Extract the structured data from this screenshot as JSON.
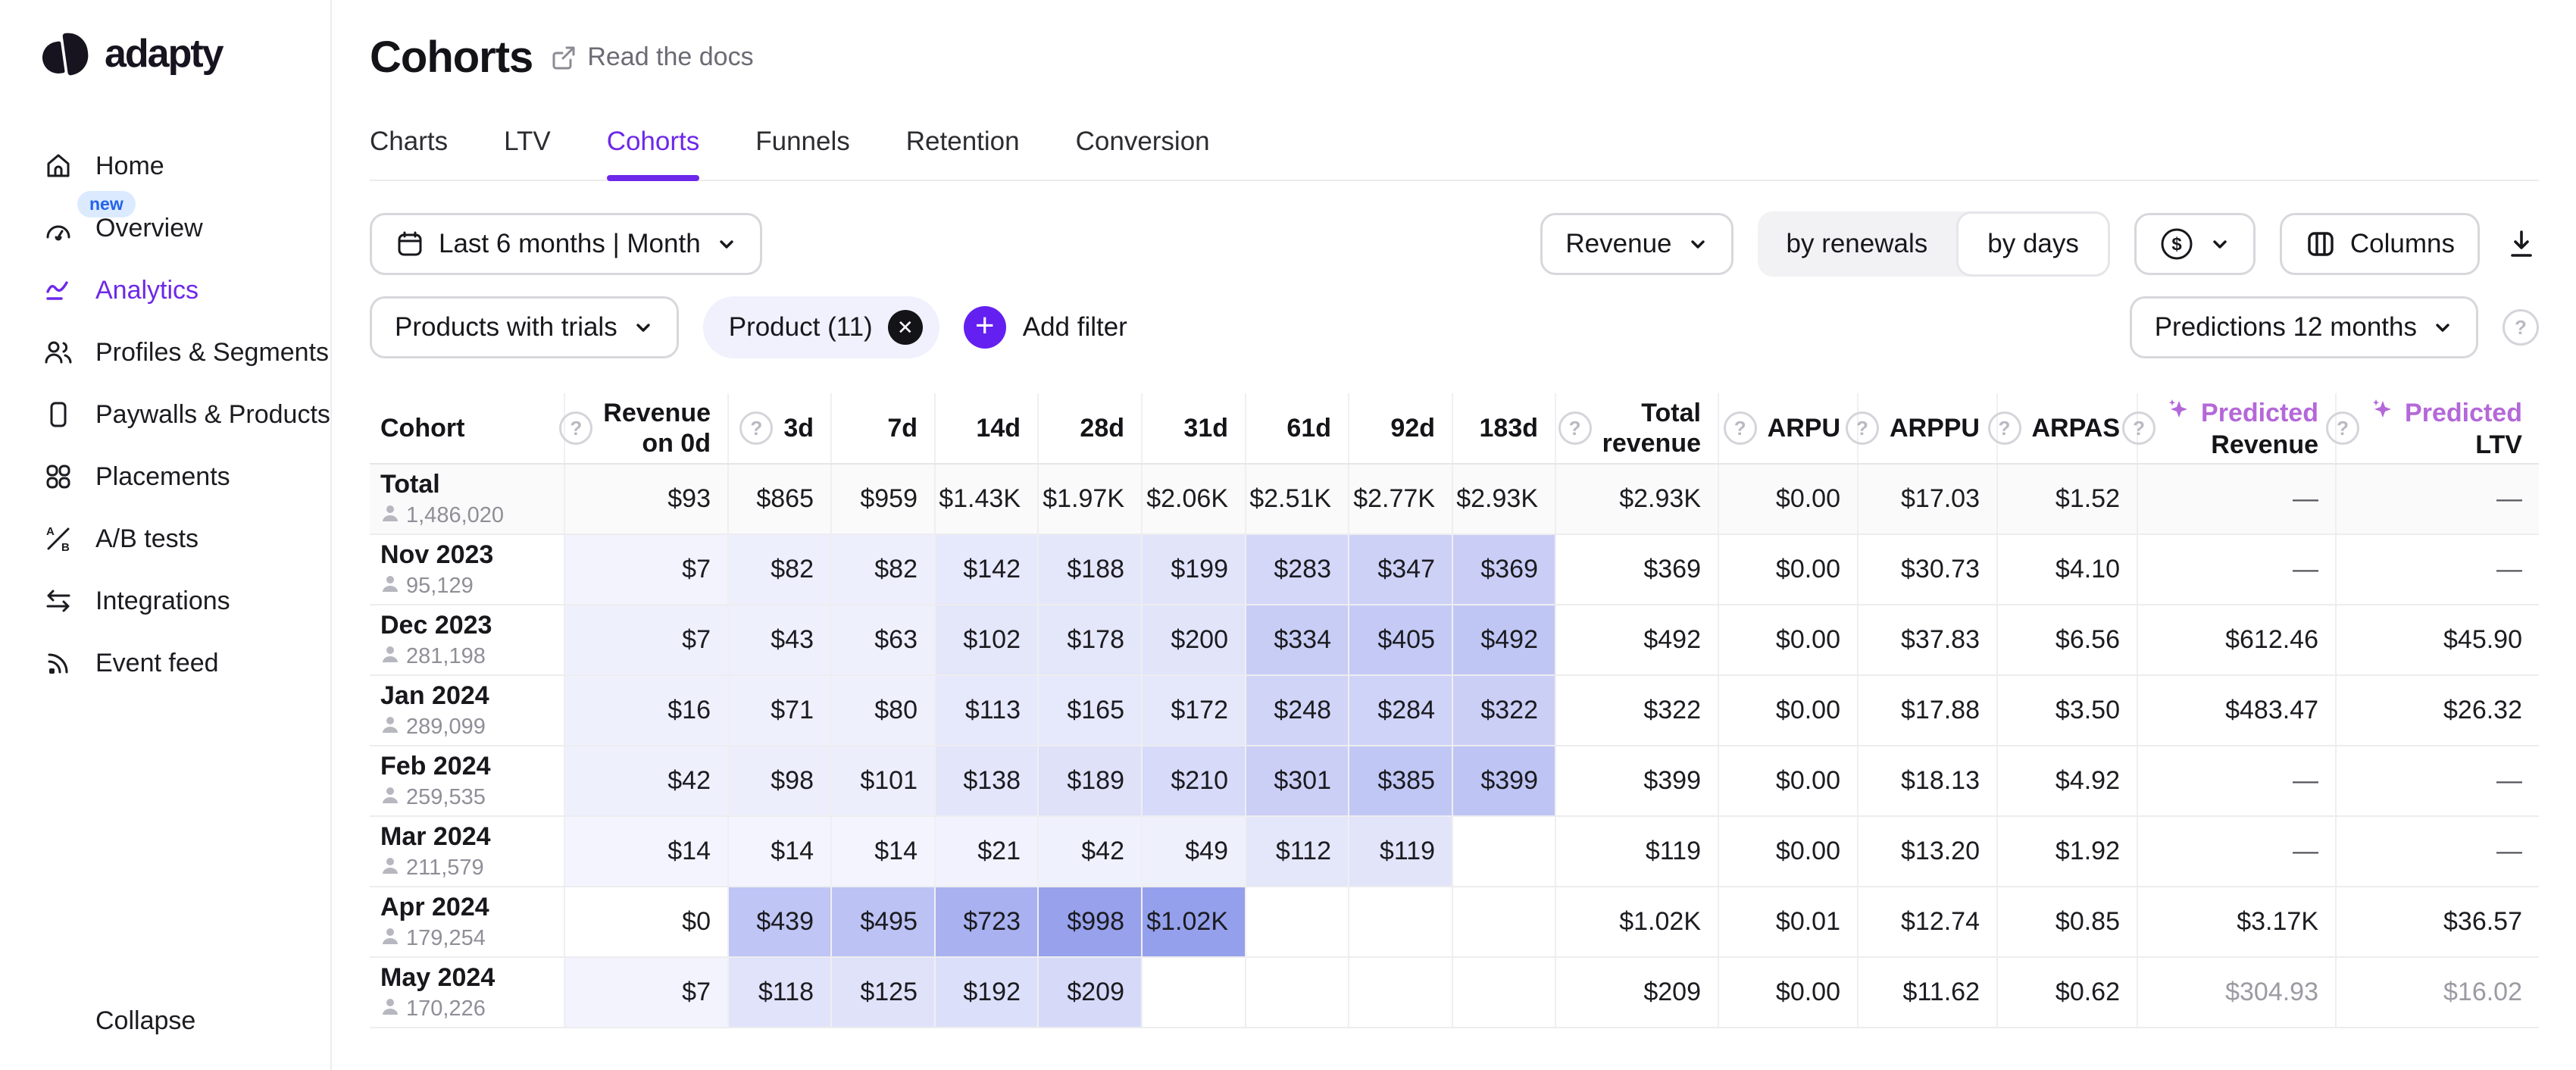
{
  "colors": {
    "accent": "#6d28e9",
    "predicted": "#b468d8",
    "badge_bg": "#dbeafe",
    "badge_text": "#2563eb",
    "chip_bg": "#f0f1fd",
    "total_row_bg": "#fafafa"
  },
  "sidebar": {
    "logo_text": "adapty",
    "items": [
      {
        "label": "Home"
      },
      {
        "label": "Overview",
        "badge": "new"
      },
      {
        "label": "Analytics",
        "active": true
      },
      {
        "label": "Profiles & Segments"
      },
      {
        "label": "Paywalls & Products"
      },
      {
        "label": "Placements"
      },
      {
        "label": "A/B tests"
      },
      {
        "label": "Integrations"
      },
      {
        "label": "Event feed"
      }
    ],
    "collapse_label": "Collapse"
  },
  "header": {
    "title": "Cohorts",
    "docs_link": "Read the docs"
  },
  "tabs": {
    "items": [
      "Charts",
      "LTV",
      "Cohorts",
      "Funnels",
      "Retention",
      "Conversion"
    ],
    "active": "Cohorts"
  },
  "filters": {
    "date_range": "Last 6 months | Month",
    "metric": "Revenue",
    "toggle_renewals": "by renewals",
    "toggle_days": "by days",
    "toggle_selected": "by days",
    "currency": "$",
    "columns_label": "Columns",
    "segment": "Products with trials",
    "product_chip": "Product (11)",
    "add_filter": "Add filter",
    "predictions": "Predictions 12 months"
  },
  "table": {
    "headers": {
      "cohort": {
        "line1": "Cohort"
      },
      "rev0d": {
        "line1": "Revenue",
        "line2": "on 0d",
        "help": true
      },
      "d3": {
        "line1": "3d",
        "help": true
      },
      "d7": {
        "line1": "7d"
      },
      "d14": {
        "line1": "14d"
      },
      "d28": {
        "line1": "28d"
      },
      "d31": {
        "line1": "31d"
      },
      "d61": {
        "line1": "61d"
      },
      "d92": {
        "line1": "92d"
      },
      "d183": {
        "line1": "183d"
      },
      "total": {
        "line1": "Total",
        "line2": "revenue",
        "help": true
      },
      "arpu": {
        "line1": "ARPU",
        "help": true
      },
      "arppu": {
        "line1": "ARPPU",
        "help": true
      },
      "arpas": {
        "line1": "ARPAS",
        "help": true
      },
      "pred_rev": {
        "line1": "Predicted",
        "line2": "Revenue",
        "help": true,
        "sparkle": true
      },
      "pred_ltv": {
        "line1": "Predicted",
        "line2": "LTV",
        "help": true,
        "sparkle": true
      }
    },
    "rows": [
      {
        "cohort": "Total",
        "users": "1,486,020",
        "is_total": true,
        "days": [
          {
            "v": "$93",
            "c": ""
          },
          {
            "v": "$865",
            "c": ""
          },
          {
            "v": "$959",
            "c": ""
          },
          {
            "v": "$1.43K",
            "c": ""
          },
          {
            "v": "$1.97K",
            "c": ""
          },
          {
            "v": "$2.06K",
            "c": ""
          },
          {
            "v": "$2.51K",
            "c": ""
          },
          {
            "v": "$2.77K",
            "c": ""
          },
          {
            "v": "$2.93K",
            "c": ""
          }
        ],
        "total": "$2.93K",
        "arpu": "$0.00",
        "arppu": "$17.03",
        "arpas": "$1.52",
        "pred_rev": "—",
        "pred_ltv": "—",
        "muted_pred": false
      },
      {
        "cohort": "Nov 2023",
        "users": "95,129",
        "is_total": false,
        "days": [
          {
            "v": "$7",
            "c": "#f2f3fd"
          },
          {
            "v": "$82",
            "c": "#edeffc"
          },
          {
            "v": "$82",
            "c": "#edeffc"
          },
          {
            "v": "$142",
            "c": "#e6e8fb"
          },
          {
            "v": "$188",
            "c": "#e4e6fa"
          },
          {
            "v": "$199",
            "c": "#e2e4fa"
          },
          {
            "v": "$283",
            "c": "#d4d7f8"
          },
          {
            "v": "$347",
            "c": "#cdd1f6"
          },
          {
            "v": "$369",
            "c": "#cacef6"
          }
        ],
        "total": "$369",
        "arpu": "$0.00",
        "arppu": "$30.73",
        "arpas": "$4.10",
        "pred_rev": "—",
        "pred_ltv": "—",
        "muted_pred": false
      },
      {
        "cohort": "Dec 2023",
        "users": "281,198",
        "is_total": false,
        "days": [
          {
            "v": "$7",
            "c": "#eef0fc"
          },
          {
            "v": "$43",
            "c": "#eef0fc"
          },
          {
            "v": "$63",
            "c": "#eef0fc"
          },
          {
            "v": "$102",
            "c": "#e4e6fa"
          },
          {
            "v": "$178",
            "c": "#e4e6fa"
          },
          {
            "v": "$200",
            "c": "#e2e4fa"
          },
          {
            "v": "$334",
            "c": "#c8cdf5"
          },
          {
            "v": "$405",
            "c": "#c4caf5"
          },
          {
            "v": "$492",
            "c": "#c0c6f4"
          }
        ],
        "total": "$492",
        "arpu": "$0.00",
        "arppu": "$37.83",
        "arpas": "$6.56",
        "pred_rev": "$612.46",
        "pred_ltv": "$45.90",
        "muted_pred": false
      },
      {
        "cohort": "Jan 2024",
        "users": "289,099",
        "is_total": false,
        "days": [
          {
            "v": "$16",
            "c": "#eef0fc"
          },
          {
            "v": "$71",
            "c": "#eef0fc"
          },
          {
            "v": "$80",
            "c": "#eef0fc"
          },
          {
            "v": "$113",
            "c": "#e6e8fb"
          },
          {
            "v": "$165",
            "c": "#e6e8fb"
          },
          {
            "v": "$172",
            "c": "#e5e7fa"
          },
          {
            "v": "$248",
            "c": "#d0d4f7"
          },
          {
            "v": "$284",
            "c": "#cfd3f7"
          },
          {
            "v": "$322",
            "c": "#cbcff6"
          }
        ],
        "total": "$322",
        "arpu": "$0.00",
        "arppu": "$17.88",
        "arpas": "$3.50",
        "pred_rev": "$483.47",
        "pred_ltv": "$26.32",
        "muted_pred": false
      },
      {
        "cohort": "Feb 2024",
        "users": "259,535",
        "is_total": false,
        "days": [
          {
            "v": "$42",
            "c": "#eef0fc"
          },
          {
            "v": "$98",
            "c": "#eceefb"
          },
          {
            "v": "$101",
            "c": "#eceefb"
          },
          {
            "v": "$138",
            "c": "#e3e5fa"
          },
          {
            "v": "$189",
            "c": "#dfe1f9"
          },
          {
            "v": "$210",
            "c": "#d7daf8"
          },
          {
            "v": "$301",
            "c": "#cbcff6"
          },
          {
            "v": "$385",
            "c": "#c1c7f4"
          },
          {
            "v": "$399",
            "c": "#bec4f3"
          }
        ],
        "total": "$399",
        "arpu": "$0.00",
        "arppu": "$18.13",
        "arpas": "$4.92",
        "pred_rev": "—",
        "pred_ltv": "—",
        "muted_pred": false
      },
      {
        "cohort": "Mar 2024",
        "users": "211,579",
        "is_total": false,
        "days": [
          {
            "v": "$14",
            "c": "#f3f4fd"
          },
          {
            "v": "$14",
            "c": "#f3f4fd"
          },
          {
            "v": "$14",
            "c": "#f3f4fd"
          },
          {
            "v": "$21",
            "c": "#f1f2fd"
          },
          {
            "v": "$42",
            "c": "#eff1fc"
          },
          {
            "v": "$49",
            "c": "#eef0fc"
          },
          {
            "v": "$112",
            "c": "#e4e6fa"
          },
          {
            "v": "$119",
            "c": "#e2e4fa"
          },
          {
            "v": "",
            "c": ""
          }
        ],
        "total": "$119",
        "arpu": "$0.00",
        "arppu": "$13.20",
        "arpas": "$1.92",
        "pred_rev": "—",
        "pred_ltv": "—",
        "muted_pred": false
      },
      {
        "cohort": "Apr 2024",
        "users": "179,254",
        "is_total": false,
        "days": [
          {
            "v": "$0",
            "c": ""
          },
          {
            "v": "$439",
            "c": "#bfc5f4"
          },
          {
            "v": "$495",
            "c": "#bcc2f3"
          },
          {
            "v": "$723",
            "c": "#a9b1f0"
          },
          {
            "v": "$998",
            "c": "#97a1ec"
          },
          {
            "v": "$1.02K",
            "c": "#95a0ec"
          },
          {
            "v": "",
            "c": ""
          },
          {
            "v": "",
            "c": ""
          },
          {
            "v": "",
            "c": ""
          }
        ],
        "total": "$1.02K",
        "arpu": "$0.01",
        "arppu": "$12.74",
        "arpas": "$0.85",
        "pred_rev": "$3.17K",
        "pred_ltv": "$36.57",
        "muted_pred": false
      },
      {
        "cohort": "May 2024",
        "users": "170,226",
        "is_total": false,
        "days": [
          {
            "v": "$7",
            "c": "#f2f3fd"
          },
          {
            "v": "$118",
            "c": "#e1e3fa"
          },
          {
            "v": "$125",
            "c": "#e0e2fa"
          },
          {
            "v": "$192",
            "c": "#dcdff9"
          },
          {
            "v": "$209",
            "c": "#d6d9f8"
          },
          {
            "v": "",
            "c": ""
          },
          {
            "v": "",
            "c": ""
          },
          {
            "v": "",
            "c": ""
          },
          {
            "v": "",
            "c": ""
          }
        ],
        "total": "$209",
        "arpu": "$0.00",
        "arppu": "$11.62",
        "arpas": "$0.62",
        "pred_rev": "$304.93",
        "pred_ltv": "$16.02",
        "muted_pred": true
      }
    ]
  }
}
